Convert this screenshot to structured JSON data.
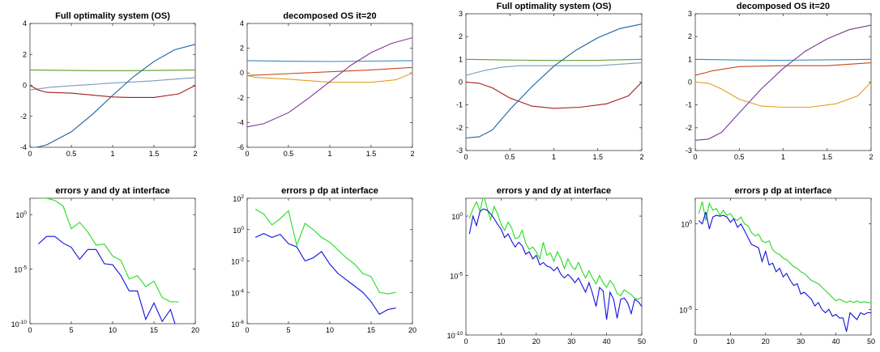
{
  "chart_data": [
    {
      "type": "line",
      "title": "Full optimality system (OS)",
      "xlim": [
        0,
        2
      ],
      "ylim": [
        -4,
        4
      ],
      "xticks": [
        "0",
        "0.5",
        "1",
        "1.5",
        "2"
      ],
      "yticks": [
        "-4",
        "-2",
        "0",
        "2",
        "4"
      ],
      "yscale": "linear",
      "grid": false,
      "legend": "none",
      "series": [
        {
          "color": "#5aa02c",
          "x": [
            0,
            0.25,
            0.5,
            0.75,
            1,
            1.25,
            1.5,
            1.75,
            2
          ],
          "y": [
            1.0,
            0.98,
            0.96,
            0.95,
            0.95,
            0.95,
            0.96,
            0.98,
            1.0
          ]
        },
        {
          "color": "#7a9cbc",
          "x": [
            0,
            0.25,
            0.5,
            0.75,
            1,
            1.25,
            1.5,
            1.75,
            2
          ],
          "y": [
            -0.3,
            -0.12,
            -0.02,
            0.06,
            0.15,
            0.22,
            0.3,
            0.4,
            0.5
          ]
        },
        {
          "color": "#a51c1c",
          "x": [
            0,
            0.1,
            0.2,
            0.5,
            0.8,
            1.0,
            1.2,
            1.5,
            1.8,
            2
          ],
          "y": [
            0.0,
            -0.3,
            -0.45,
            -0.5,
            -0.65,
            -0.75,
            -0.78,
            -0.78,
            -0.55,
            0.0
          ]
        },
        {
          "color": "#1f5f9e",
          "x": [
            0,
            0.2,
            0.5,
            0.75,
            1.0,
            1.25,
            1.5,
            1.75,
            2
          ],
          "y": [
            -4.1,
            -3.85,
            -3.0,
            -1.9,
            -0.65,
            0.55,
            1.55,
            2.3,
            2.65
          ]
        }
      ]
    },
    {
      "type": "line",
      "title": "decomposed OS it=20",
      "xlim": [
        0,
        2
      ],
      "ylim": [
        -6,
        4
      ],
      "xticks": [
        "0",
        "0.5",
        "1",
        "1.5",
        "2"
      ],
      "yticks": [
        "-6",
        "-4",
        "-2",
        "0",
        "2",
        "4"
      ],
      "yscale": "linear",
      "grid": false,
      "legend": "none",
      "series": [
        {
          "color": "#2d8bc9",
          "x": [
            0,
            0.5,
            1,
            1.5,
            2
          ],
          "y": [
            1.0,
            0.95,
            0.93,
            0.96,
            1.0
          ]
        },
        {
          "color": "#c8461a",
          "x": [
            0,
            0.5,
            1,
            1.5,
            2
          ],
          "y": [
            -0.2,
            -0.05,
            0.1,
            0.25,
            0.45
          ]
        },
        {
          "color": "#e0a020",
          "x": [
            0,
            0.1,
            0.5,
            1.0,
            1.5,
            1.8,
            2
          ],
          "y": [
            -0.2,
            -0.35,
            -0.5,
            -0.75,
            -0.75,
            -0.55,
            0.0
          ]
        },
        {
          "color": "#7e3795",
          "x": [
            0,
            0.2,
            0.5,
            0.75,
            1.0,
            1.25,
            1.5,
            1.75,
            2
          ],
          "y": [
            -4.35,
            -4.1,
            -3.2,
            -2.0,
            -0.7,
            0.6,
            1.65,
            2.4,
            2.85
          ]
        }
      ]
    },
    {
      "type": "line",
      "title": "Full optimality system (OS)",
      "xlim": [
        0,
        2
      ],
      "ylim": [
        -3,
        3
      ],
      "xticks": [
        "0",
        "0.5",
        "1",
        "1.5",
        "2"
      ],
      "yticks": [
        "-3",
        "-2",
        "-1",
        "0",
        "1",
        "2",
        "3"
      ],
      "yscale": "linear",
      "grid": false,
      "legend": "none",
      "series": [
        {
          "color": "#5aa02c",
          "x": [
            0,
            0.5,
            1,
            1.5,
            2
          ],
          "y": [
            1.0,
            0.97,
            0.95,
            0.96,
            1.0
          ]
        },
        {
          "color": "#7a9cbc",
          "x": [
            0,
            0.2,
            0.4,
            0.6,
            1.0,
            1.5,
            2
          ],
          "y": [
            0.3,
            0.5,
            0.65,
            0.72,
            0.72,
            0.72,
            0.85
          ]
        },
        {
          "color": "#a51c1c",
          "x": [
            0,
            0.15,
            0.3,
            0.5,
            0.75,
            1.0,
            1.3,
            1.6,
            1.85,
            2
          ],
          "y": [
            0.0,
            -0.05,
            -0.25,
            -0.7,
            -1.05,
            -1.15,
            -1.1,
            -0.95,
            -0.6,
            0.0
          ]
        },
        {
          "color": "#1f5f9e",
          "x": [
            0,
            0.15,
            0.3,
            0.5,
            0.75,
            1.0,
            1.25,
            1.5,
            1.75,
            2
          ],
          "y": [
            -2.45,
            -2.4,
            -2.1,
            -1.2,
            -0.2,
            0.7,
            1.4,
            1.95,
            2.35,
            2.55
          ]
        }
      ]
    },
    {
      "type": "line",
      "title": "decomposed OS it=20",
      "xlim": [
        0,
        2
      ],
      "ylim": [
        -3,
        3
      ],
      "xticks": [
        "0",
        "0.5",
        "1",
        "1.5",
        "2"
      ],
      "yticks": [
        "-3",
        "-2",
        "-1",
        "0",
        "1",
        "2",
        "3"
      ],
      "yscale": "linear",
      "grid": false,
      "legend": "none",
      "series": [
        {
          "color": "#2d8bc9",
          "x": [
            0,
            0.5,
            1,
            1.5,
            2
          ],
          "y": [
            1.0,
            0.97,
            0.96,
            0.98,
            1.0
          ]
        },
        {
          "color": "#c8461a",
          "x": [
            0,
            0.2,
            0.5,
            1.0,
            1.5,
            2
          ],
          "y": [
            0.3,
            0.5,
            0.68,
            0.72,
            0.72,
            0.85
          ]
        },
        {
          "color": "#e0a020",
          "x": [
            0,
            0.15,
            0.3,
            0.5,
            0.75,
            1.0,
            1.3,
            1.6,
            1.85,
            2
          ],
          "y": [
            0.0,
            -0.05,
            -0.3,
            -0.75,
            -1.05,
            -1.1,
            -1.1,
            -0.95,
            -0.6,
            0.0
          ]
        },
        {
          "color": "#7e3795",
          "x": [
            0,
            0.15,
            0.3,
            0.5,
            0.75,
            1.0,
            1.25,
            1.5,
            1.75,
            2
          ],
          "y": [
            -2.55,
            -2.5,
            -2.2,
            -1.35,
            -0.3,
            0.6,
            1.35,
            1.9,
            2.3,
            2.5
          ]
        }
      ]
    },
    {
      "type": "line",
      "title": "errors y and dy at interface",
      "xlim": [
        0,
        20
      ],
      "ylim_exp": [
        -10,
        1.5
      ],
      "xticks": [
        "0",
        "5",
        "10",
        "15",
        "20"
      ],
      "ytick_exps": [
        -10,
        -5,
        0
      ],
      "yscale": "log",
      "grid": false,
      "legend": "none",
      "series": [
        {
          "color": "#22dd22",
          "x": [
            1,
            2,
            3,
            4,
            5,
            6,
            7,
            8,
            9,
            10,
            11,
            12,
            13,
            14,
            15,
            16,
            17,
            18
          ],
          "y_exp": [
            1.5,
            1.5,
            1.3,
            0.8,
            -1.3,
            -0.7,
            -1.6,
            -2.8,
            -2.7,
            -3.8,
            -4.2,
            -5.9,
            -5.6,
            -6.6,
            -6.1,
            -7.6,
            -8.0,
            -8.0
          ]
        },
        {
          "color": "#1010dd",
          "x": [
            1,
            2,
            3,
            4,
            5,
            6,
            7,
            8,
            9,
            10,
            11,
            12,
            13,
            14,
            15,
            16,
            17,
            18
          ],
          "y_exp": [
            -2.7,
            -2.0,
            -2.0,
            -2.6,
            -3.0,
            -4.1,
            -3.2,
            -3.2,
            -4.5,
            -4.6,
            -5.6,
            -7.0,
            -7.0,
            -9.6,
            -8.1,
            -9.8,
            -8.7,
            -11.1
          ]
        }
      ]
    },
    {
      "type": "line",
      "title": "errors p dp at interface",
      "xlim": [
        0,
        20
      ],
      "ylim_exp": [
        -6,
        2
      ],
      "xticks": [
        "0",
        "5",
        "10",
        "15",
        "20"
      ],
      "ytick_exps": [
        -6,
        -4,
        -2,
        0,
        2
      ],
      "yscale": "log",
      "grid": false,
      "legend": "none",
      "series": [
        {
          "color": "#22dd22",
          "x": [
            1,
            2,
            3,
            4,
            5,
            6,
            7,
            8,
            9,
            10,
            11,
            12,
            13,
            14,
            15,
            16,
            17,
            18
          ],
          "y_exp": [
            1.3,
            1.0,
            0.3,
            0.7,
            1.2,
            -1.0,
            0.4,
            0.0,
            -0.5,
            -0.8,
            -1.3,
            -1.8,
            -2.2,
            -2.8,
            -3.0,
            -4.0,
            -4.1,
            -4.0
          ]
        },
        {
          "color": "#1010dd",
          "x": [
            1,
            2,
            3,
            4,
            5,
            6,
            7,
            8,
            9,
            10,
            11,
            12,
            13,
            14,
            15,
            16,
            17,
            18
          ],
          "y_exp": [
            -0.5,
            -0.25,
            -0.5,
            -0.3,
            -0.9,
            -1.1,
            -2.0,
            -1.8,
            -1.4,
            -2.2,
            -2.8,
            -3.2,
            -3.6,
            -4.0,
            -4.6,
            -5.4,
            -5.1,
            -5.0
          ]
        }
      ]
    },
    {
      "type": "line",
      "title": "errors y and dy at interface",
      "xlim": [
        0,
        50
      ],
      "ylim_exp": [
        -10,
        1.5
      ],
      "xticks": [
        "0",
        "10",
        "20",
        "30",
        "40",
        "50"
      ],
      "ytick_exps": [
        -10,
        -5,
        0
      ],
      "yscale": "log",
      "grid": false,
      "legend": "none",
      "series": [
        {
          "color": "#22dd22",
          "x": [
            1,
            2,
            3,
            4,
            5,
            6,
            7,
            8,
            9,
            10,
            11,
            12,
            13,
            14,
            15,
            16,
            17,
            18,
            19,
            20,
            21,
            22,
            23,
            24,
            25,
            26,
            27,
            28,
            29,
            30,
            31,
            32,
            33,
            34,
            35,
            36,
            37,
            38,
            39,
            40,
            41,
            42,
            43,
            44,
            45,
            46,
            47,
            48,
            49,
            50
          ],
          "y_exp": [
            -0.2,
            0.6,
            1.2,
            0.4,
            1.8,
            0.7,
            -0.3,
            0.8,
            0.2,
            -0.7,
            -1.2,
            -0.5,
            -1.0,
            -1.9,
            -1.8,
            -1.2,
            -2.3,
            -2.8,
            -2.6,
            -3.0,
            -3.6,
            -2.2,
            -3.3,
            -3.1,
            -3.8,
            -3.0,
            -3.6,
            -4.4,
            -3.6,
            -4.2,
            -4.5,
            -3.9,
            -4.6,
            -5.2,
            -4.6,
            -5.2,
            -5.7,
            -5.0,
            -5.6,
            -6.0,
            -5.4,
            -5.8,
            -6.5,
            -6.7,
            -6.2,
            -6.4,
            -6.6,
            -6.9,
            -7.0,
            -6.8
          ]
        },
        {
          "color": "#1010dd",
          "x": [
            1,
            2,
            3,
            4,
            5,
            6,
            7,
            8,
            9,
            10,
            11,
            12,
            13,
            14,
            15,
            16,
            17,
            18,
            19,
            20,
            21,
            22,
            23,
            24,
            25,
            26,
            27,
            28,
            29,
            30,
            31,
            32,
            33,
            34,
            35,
            36,
            37,
            38,
            39,
            40,
            41,
            42,
            43,
            44,
            45,
            46,
            47,
            48,
            49,
            50
          ],
          "y_exp": [
            -1.5,
            0.0,
            -0.8,
            0.4,
            0.6,
            0.5,
            0.2,
            -0.2,
            -0.7,
            -1.1,
            -1.8,
            -1.5,
            -2.1,
            -2.6,
            -2.2,
            -2.5,
            -3.2,
            -3.0,
            -3.6,
            -3.3,
            -4.1,
            -3.9,
            -4.2,
            -4.3,
            -4.6,
            -4.3,
            -4.9,
            -5.2,
            -4.9,
            -5.2,
            -5.6,
            -5.2,
            -5.8,
            -6.4,
            -5.6,
            -6.5,
            -7.6,
            -6.0,
            -6.3,
            -8.7,
            -6.4,
            -7.0,
            -8.6,
            -7.0,
            -6.9,
            -7.3,
            -8.2,
            -7.0,
            -7.2,
            -7.6
          ]
        }
      ]
    },
    {
      "type": "line",
      "title": "errors p dp at interface",
      "xlim": [
        0,
        50
      ],
      "ylim_exp": [
        -6.5,
        1.5
      ],
      "xticks": [
        "0",
        "10",
        "20",
        "30",
        "40",
        "50"
      ],
      "ytick_exps": [
        -5,
        0
      ],
      "yscale": "log",
      "grid": false,
      "legend": "none",
      "series": [
        {
          "color": "#22dd22",
          "x": [
            1,
            2,
            3,
            4,
            5,
            6,
            7,
            8,
            9,
            10,
            11,
            12,
            13,
            14,
            15,
            16,
            17,
            18,
            19,
            20,
            21,
            22,
            23,
            24,
            25,
            26,
            27,
            28,
            29,
            30,
            31,
            32,
            33,
            34,
            35,
            36,
            37,
            38,
            39,
            40,
            41,
            42,
            43,
            44,
            45,
            46,
            47,
            48,
            49,
            50
          ],
          "y_exp": [
            0.6,
            1.3,
            0.2,
            1.2,
            0.8,
            0.9,
            0.5,
            0.8,
            0.5,
            0.6,
            0.3,
            0.2,
            0.4,
            0.0,
            -0.1,
            -0.5,
            -0.7,
            -0.6,
            -1.0,
            -1.1,
            -1.0,
            -1.5,
            -1.7,
            -1.8,
            -2.0,
            -2.1,
            -2.3,
            -2.5,
            -2.6,
            -2.8,
            -2.9,
            -3.1,
            -3.3,
            -3.4,
            -3.5,
            -3.7,
            -3.9,
            -4.1,
            -4.3,
            -4.5,
            -4.4,
            -4.5,
            -4.6,
            -4.5,
            -4.6,
            -4.5,
            -4.6,
            -4.55,
            -4.6,
            -4.6
          ]
        },
        {
          "color": "#1010dd",
          "x": [
            1,
            2,
            3,
            4,
            5,
            6,
            7,
            8,
            9,
            10,
            11,
            12,
            13,
            14,
            15,
            16,
            17,
            18,
            19,
            20,
            21,
            22,
            23,
            24,
            25,
            26,
            27,
            28,
            29,
            30,
            31,
            32,
            33,
            34,
            35,
            36,
            37,
            38,
            39,
            40,
            41,
            42,
            43,
            44,
            45,
            46,
            47,
            48,
            49,
            50
          ],
          "y_exp": [
            0.2,
            0.0,
            0.7,
            -0.3,
            0.4,
            0.5,
            0.45,
            0.5,
            0.4,
            0.1,
            0.3,
            -0.2,
            0.0,
            -0.4,
            -0.8,
            -1.2,
            -1.3,
            -1.4,
            -2.2,
            -1.6,
            -2.4,
            -2.3,
            -2.8,
            -2.6,
            -3.1,
            -2.9,
            -3.3,
            -3.6,
            -3.5,
            -4.1,
            -4.0,
            -4.2,
            -4.4,
            -4.8,
            -4.6,
            -5.0,
            -5.2,
            -5.0,
            -5.4,
            -5.3,
            -5.5,
            -5.5,
            -6.3,
            -5.2,
            -5.4,
            -5.6,
            -5.2,
            -5.3,
            -5.2,
            -5.2
          ]
        }
      ]
    }
  ]
}
